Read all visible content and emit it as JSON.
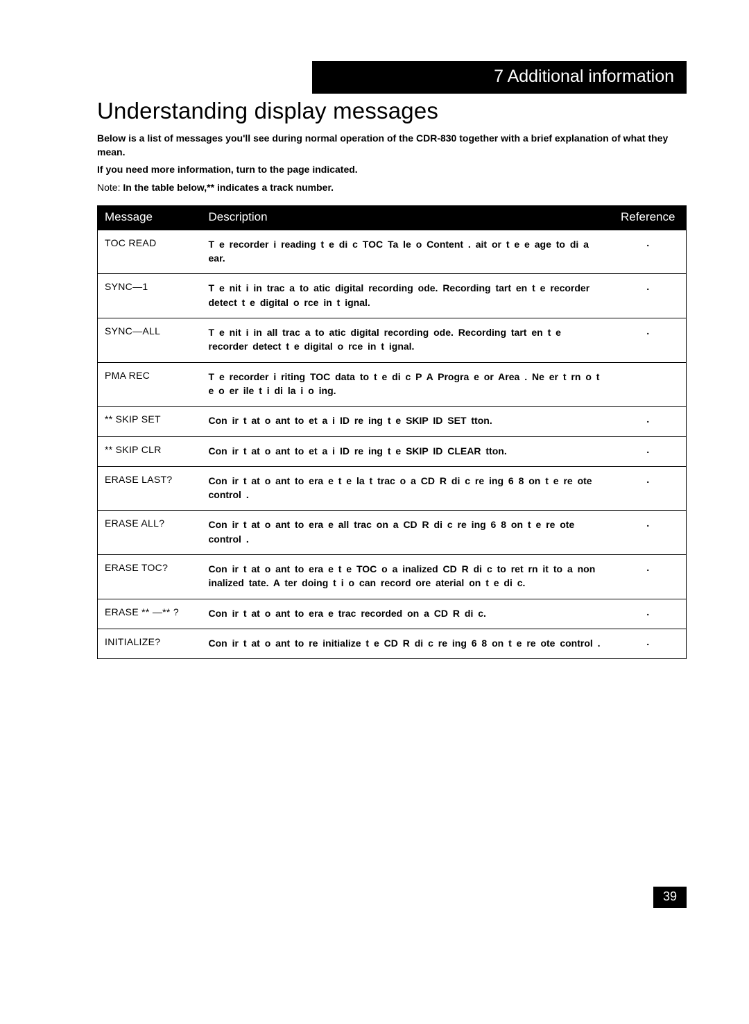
{
  "chapter": "7 Additional information",
  "title": "Understanding display messages",
  "intro1": "Below is a list of messages you'll see during normal operation of the CDR-830 together with a brief explanation of what they mean.",
  "intro2": "If you need more information, turn to the page indicated.",
  "note_label": "Note:",
  "note_body": " In the table below,** indicates a track number.",
  "columns": {
    "msg": "Message",
    "desc": "Description",
    "ref": "Reference"
  },
  "rows": [
    {
      "msg": "TOC READ",
      "desc": "T e recorder i  reading t e di c  TOC  Ta le o  Content .  ait  or t e  e  age to di a  ear.",
      "ref": "."
    },
    {
      "msg": "SYNC—1",
      "desc": "T e  nit i  in  trac  a to  atic digital recording  ode. Recording  tart    en t e recorder detect  t e digital  o rce in  t  ignal.",
      "ref": "."
    },
    {
      "msg": "SYNC—ALL",
      "desc": "T e  nit i  in all trac  a to  atic digital recording  ode. Recording  tart    en t e recorder detect  t e digital  o rce in  t  ignal.",
      "ref": "."
    },
    {
      "msg": "PMA REC",
      "desc": "T e recorder i   riting TOC data to t e di c  P A  Progra   e or  Area . Ne er t rn o  t e  o er   ile t i  di  la  i   o ing.",
      "ref": ""
    },
    {
      "msg": "** SKIP SET",
      "desc": "Con ir  t at  o   ant to  et a  i  ID    re  ing t e      SKIP ID SET  tton.",
      "ref": "."
    },
    {
      "msg": "** SKIP CLR",
      "desc": "Con ir  t at  o   ant to  et a  i  ID    re  ing t e      SKIP ID CLEAR  tton.",
      "ref": "."
    },
    {
      "msg": "ERASE LAST?",
      "desc": "Con ir  t at  o   ant to era e t e la t trac  o  a CD R  di c    re  ing  6     8  on t e re ote control .",
      "ref": "."
    },
    {
      "msg": "ERASE ALL?",
      "desc": "Con ir  t at  o   ant to era e all trac   on a CD R  di c    re  ing  6     8  on t e re ote control .",
      "ref": "."
    },
    {
      "msg": "ERASE TOC?",
      "desc": "Con ir  t at  o   ant to era e t e TOC o  a  inalized CD R  di c to ret rn it to a non  inalized  tate. A ter doing t i   o  can record  ore  aterial on t e di c.",
      "ref": "."
    },
    {
      "msg": "ERASE ** —** ?",
      "desc": "Con ir  t at  o   ant to era e trac   recorded on a CD R  di c.",
      "ref": "."
    },
    {
      "msg": "INITIALIZE?",
      "desc": "Con ir  t at  o   ant to re initialize t e CD R  di c    re  ing 6     8  on t e re ote control .",
      "ref": "."
    }
  ],
  "page_number": "39",
  "styling": {
    "page_bg": "#ffffff",
    "header_bg": "#000000",
    "header_fg": "#ffffff",
    "border_color": "#000000",
    "title_fontsize": 33,
    "chapter_fontsize": 25,
    "body_fontsize": 14,
    "th_fontsize": 17
  }
}
